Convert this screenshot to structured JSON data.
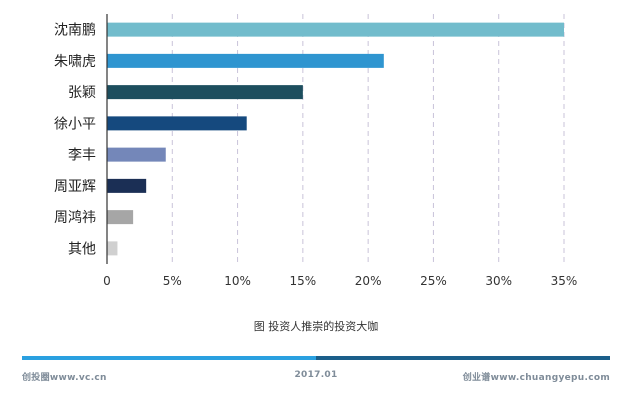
{
  "chart_data": {
    "type": "bar",
    "orientation": "horizontal",
    "categories": [
      "沈南鹏",
      "朱啸虎",
      "张颖",
      "徐小平",
      "李丰",
      "周亚辉",
      "周鸿祎",
      "其他"
    ],
    "values": [
      35,
      21.2,
      15,
      10.7,
      4.5,
      3,
      2,
      0.8
    ],
    "xlim": [
      0,
      35
    ],
    "xticks": [
      "0",
      "5%",
      "10%",
      "15%",
      "20%",
      "25%",
      "30%",
      "35%"
    ],
    "grid": "vertical-dashed",
    "colors": [
      "#72bccc",
      "#2f95d0",
      "#1d4e5e",
      "#15497e",
      "#7487b9",
      "#1b2f55",
      "#a6a6a6",
      "#d0d0d0"
    ]
  },
  "caption": "图  投资人推崇的投资大咖",
  "footer": {
    "left": "创投圈www.vc.cn",
    "center": "2017.01",
    "right": "创业谱www.chuangyepu.com",
    "bar_left_color": "#2aa0e0",
    "bar_right_color": "#1b5f8a"
  }
}
